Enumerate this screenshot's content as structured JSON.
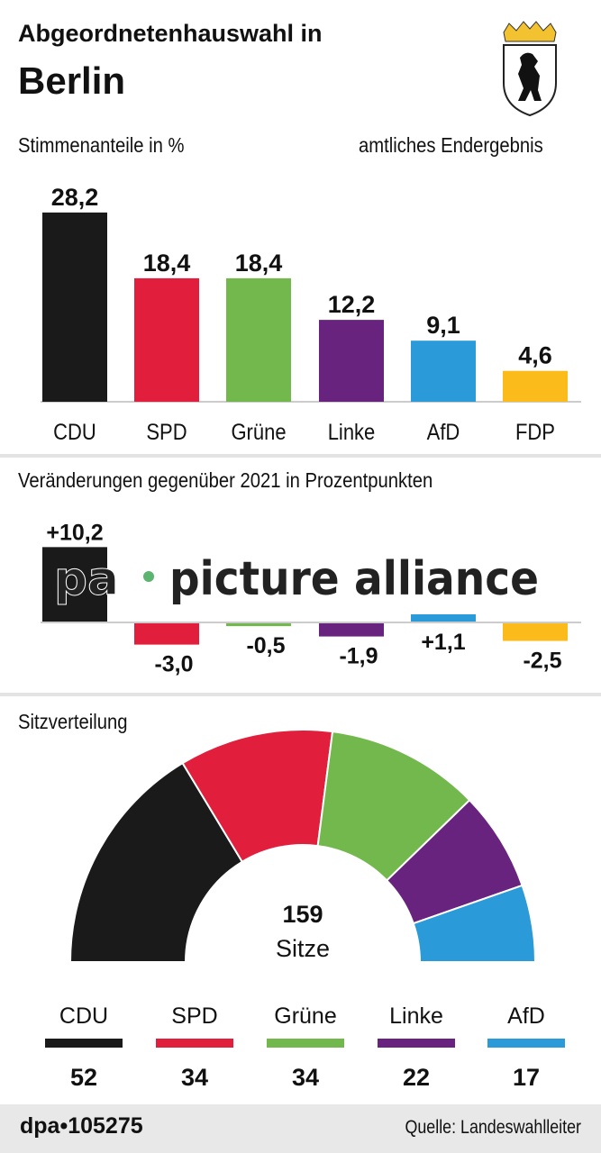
{
  "header": {
    "title_line1": "Abgeordnetenhauswahl in",
    "title_line2": "Berlin",
    "crest": "Berlin coat of arms (bear)"
  },
  "footer": {
    "credit": "dpa•105275",
    "source": "Quelle: Landeswahlleiter"
  },
  "watermark": "pa • picture alliance",
  "chart_data": [
    {
      "type": "bar",
      "title": "Stimmenanteile in %",
      "subtitle": "amtliches Endergebnis",
      "categories": [
        "CDU",
        "SPD",
        "Grüne",
        "Linke",
        "AfD",
        "FDP"
      ],
      "values": [
        28.2,
        18.4,
        18.4,
        12.2,
        9.1,
        4.6
      ],
      "labels": [
        "28,2",
        "18,4",
        "18,4",
        "12,2",
        "9,1",
        "4,6"
      ],
      "colors": [
        "#1a1a1a",
        "#e11e3c",
        "#72b84c",
        "#68237f",
        "#2a9ad8",
        "#fbbb1a"
      ]
    },
    {
      "type": "bar",
      "title": "Veränderungen gegenüber 2021 in Prozentpunkten",
      "categories": [
        "CDU",
        "SPD",
        "Grüne",
        "Linke",
        "AfD",
        "FDP"
      ],
      "values": [
        10.2,
        -3.0,
        -0.5,
        -1.9,
        1.1,
        -2.5
      ],
      "labels": [
        "+10,2",
        "-3,0",
        "-0,5",
        "-1,9",
        "+1,1",
        "-2,5"
      ],
      "colors": [
        "#1a1a1a",
        "#e11e3c",
        "#72b84c",
        "#68237f",
        "#2a9ad8",
        "#fbbb1a"
      ]
    },
    {
      "type": "pie",
      "subtype": "hemicycle",
      "title": "Sitzverteilung",
      "total": 159,
      "total_label": "159",
      "total_unit": "Sitze",
      "categories": [
        "CDU",
        "SPD",
        "Grüne",
        "Linke",
        "AfD"
      ],
      "values": [
        52,
        34,
        34,
        22,
        17
      ],
      "colors": [
        "#1a1a1a",
        "#e11e3c",
        "#72b84c",
        "#68237f",
        "#2a9ad8"
      ]
    }
  ]
}
